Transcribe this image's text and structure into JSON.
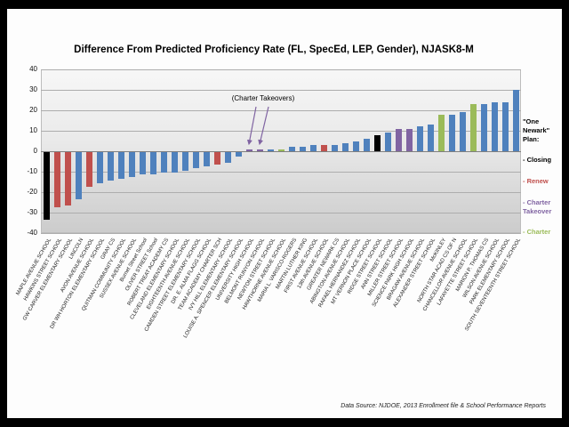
{
  "chart_data": {
    "type": "bar",
    "title": "Difference From Predicted Proficiency Rate (FL, SpecEd, LEP, Gender), NJASK8-M",
    "annotation": "(Charter Takeovers)",
    "ylim": [
      -40,
      40
    ],
    "y_ticks": [
      40,
      30,
      20,
      10,
      0,
      -10,
      -20,
      -30,
      -40
    ],
    "grid": true,
    "legend_position": "right",
    "plan_colors": {
      "closing": "#000000",
      "renew": "#C0504D",
      "takeover": "#8064A2",
      "charter": "#9BBB59",
      "none": "#4F81BD"
    },
    "points": [
      {
        "name": "MAPLE AVENUE SCHOOL",
        "value": -33,
        "plan": "closing"
      },
      {
        "name": "HAWKINS STREET SCHOOL",
        "value": -27,
        "plan": "renew"
      },
      {
        "name": "GW CARVER ELEMENTARY SCHOOL",
        "value": -26,
        "plan": "renew"
      },
      {
        "name": "LINCOLN",
        "value": -23,
        "plan": "none"
      },
      {
        "name": "AVON AVENUE SCHOOL",
        "value": -17,
        "plan": "renew"
      },
      {
        "name": "DR WH HORTON ELEMENTARY SCHOOL",
        "value": -15,
        "plan": "none"
      },
      {
        "name": "GRAY CS",
        "value": -14,
        "plan": "none"
      },
      {
        "name": "QUITMAN COMMUNITY SCHOOL",
        "value": -13,
        "plan": "none"
      },
      {
        "name": "SUSSEX AVENUE SCHOOL",
        "value": -12,
        "plan": "none"
      },
      {
        "name": "Burnet Street School",
        "value": -11,
        "plan": "none"
      },
      {
        "name": "OLIVER STREET School",
        "value": -11,
        "plan": "none"
      },
      {
        "name": "ROBERT TREAT ACADEMY CS",
        "value": -10,
        "plan": "none"
      },
      {
        "name": "CLEVELAND ELEMENTARY SCHOOL",
        "value": -10,
        "plan": "none"
      },
      {
        "name": "EIGHTEENTH AVENUE SCHOOL",
        "value": -9,
        "plan": "none"
      },
      {
        "name": "CAMDEN STREET ELEMENTARY SCHOOL",
        "value": -8,
        "plan": "none"
      },
      {
        "name": "DR. E. ALMA FLAGG SCHOOL",
        "value": -7,
        "plan": "none"
      },
      {
        "name": "TEAM ACADEMY CHARTER SCH",
        "value": -6,
        "plan": "renew"
      },
      {
        "name": "IVY HILL ELEMENTARY SCHOOL",
        "value": -5,
        "plan": "none"
      },
      {
        "name": "LOUISE A. SPENCER ELEMENTARY SCHOOL",
        "value": -2,
        "plan": "none"
      },
      {
        "name": "UNIVERSITY HIGH SCHOOL",
        "value": 1,
        "plan": "takeover"
      },
      {
        "name": "BELMONT RUNYON SCHOOL",
        "value": 1,
        "plan": "takeover"
      },
      {
        "name": "NEWTON STREET SCHOOL",
        "value": 1,
        "plan": "none"
      },
      {
        "name": "HAWTHORNE AVENUE SCHOOL",
        "value": 1,
        "plan": "charter"
      },
      {
        "name": "MARIA L. VARISCO-ROGERS",
        "value": 2,
        "plan": "none"
      },
      {
        "name": "MARTIN LUTHER KING",
        "value": 2,
        "plan": "none"
      },
      {
        "name": "FIRST AVENUE SCHOOL",
        "value": 3,
        "plan": "none"
      },
      {
        "name": "13th AVENUE SCHOOL",
        "value": 3,
        "plan": "renew"
      },
      {
        "name": "GREATER NEWARK CS",
        "value": 3,
        "plan": "none"
      },
      {
        "name": "ABINGTON AVENUE SCHOOL",
        "value": 4,
        "plan": "none"
      },
      {
        "name": "RAFAEL HERNANDEZ SCHOOL",
        "value": 5,
        "plan": "none"
      },
      {
        "name": "MT VERNON PLACE SCHOOL",
        "value": 6,
        "plan": "none"
      },
      {
        "name": "RIDGE STREET SCHOOL",
        "value": 8,
        "plan": "closing"
      },
      {
        "name": "ANN STREET SCHOOL",
        "value": 9,
        "plan": "none"
      },
      {
        "name": "MILLER STREET SCHOOL",
        "value": 11,
        "plan": "takeover"
      },
      {
        "name": "SCIENCE PARK HIGH SCHOOL",
        "value": 11,
        "plan": "takeover"
      },
      {
        "name": "BRAGAW AVENUE SCHOOL",
        "value": 12,
        "plan": "none"
      },
      {
        "name": "ALEXANDER STREET SCHOOL",
        "value": 13,
        "plan": "none"
      },
      {
        "name": "McKINLEY",
        "value": 18,
        "plan": "charter"
      },
      {
        "name": "NORTH STAR ACAD CS OF N",
        "value": 18,
        "plan": "none"
      },
      {
        "name": "CHANCELLOR AVENUE SCHOOL",
        "value": 19,
        "plan": "none"
      },
      {
        "name": "LAFAYETTE STREET SCHOOL",
        "value": 23,
        "plan": "charter"
      },
      {
        "name": "MARION P. THOMAS CS",
        "value": 23,
        "plan": "none"
      },
      {
        "name": "WILSON AVENUE SCHOOL",
        "value": 24,
        "plan": "none"
      },
      {
        "name": "PARK ELEMENTARY SCHOOL",
        "value": 24,
        "plan": "none"
      },
      {
        "name": "SOUTH SEVENTEENTH STREET SCHOOL",
        "value": 30,
        "plan": "none"
      }
    ]
  },
  "legend": {
    "title": "\"One Newark\" Plan:",
    "items": [
      {
        "label": "- Closing",
        "plan": "closing",
        "color": "#000000"
      },
      {
        "label": "- Renew",
        "plan": "renew",
        "color": "#C0504D"
      },
      {
        "label": "- Charter Takeover",
        "plan": "takeover",
        "color": "#8064A2"
      },
      {
        "label": "- Charter",
        "plan": "charter",
        "color": "#9BBB59"
      }
    ]
  },
  "footer": {
    "source": "Data Source: NJDOE, 2013 Enrollment file & School Performance Reports"
  }
}
